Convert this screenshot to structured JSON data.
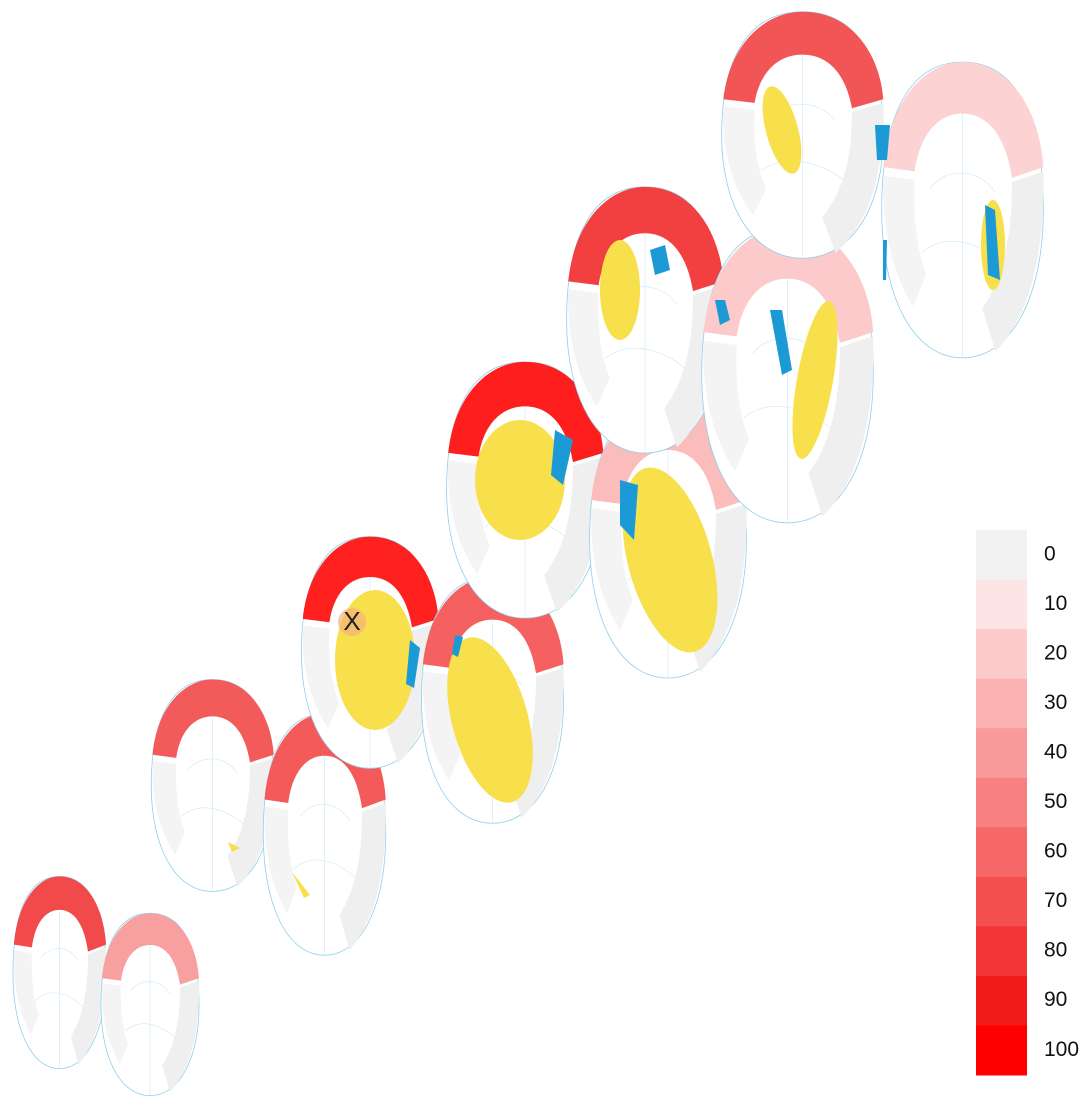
{
  "marker": "X",
  "legend": {
    "levels": [
      0,
      10,
      20,
      30,
      40,
      50,
      60,
      70,
      80,
      90,
      100
    ],
    "colors": [
      "#f2f2f2",
      "#fde4e4",
      "#fccbcb",
      "#fbb2b2",
      "#fa9999",
      "#f88080",
      "#f76767",
      "#f54e4e",
      "#f43535",
      "#f21b1b",
      "#ff0000"
    ]
  }
}
